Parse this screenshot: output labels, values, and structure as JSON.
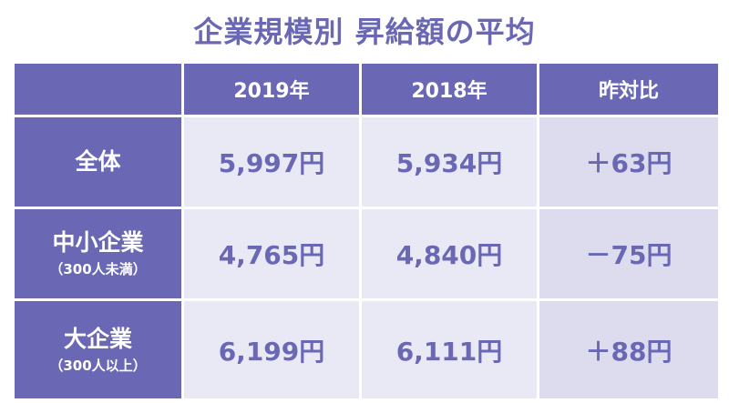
{
  "title": "企業規模別 昇給額の平均",
  "chart_data": {
    "type": "table",
    "title": "企業規模別 昇給額の平均",
    "columns": [
      "",
      "2019年",
      "2018年",
      "昨対比"
    ],
    "rows": [
      {
        "label": "全体",
        "sublabel": "",
        "values": [
          "5,997円",
          "5,934円",
          "＋63円"
        ],
        "numeric": {
          "y2019": 5997,
          "y2018": 5934,
          "diff": 63
        }
      },
      {
        "label": "中小企業",
        "sublabel": "（300人未満）",
        "values": [
          "4,765円",
          "4,840円",
          "－75円"
        ],
        "numeric": {
          "y2019": 4765,
          "y2018": 4840,
          "diff": -75
        }
      },
      {
        "label": "大企業",
        "sublabel": "（300人以上）",
        "values": [
          "6,199円",
          "6,111円",
          "＋88円"
        ],
        "numeric": {
          "y2019": 6199,
          "y2018": 6111,
          "diff": 88
        }
      }
    ]
  },
  "colors": {
    "header_bg": "#6a68b4",
    "value_text": "#6a68b4",
    "value_bg": "#e9e8f5",
    "diff_bg": "#dddcef"
  }
}
